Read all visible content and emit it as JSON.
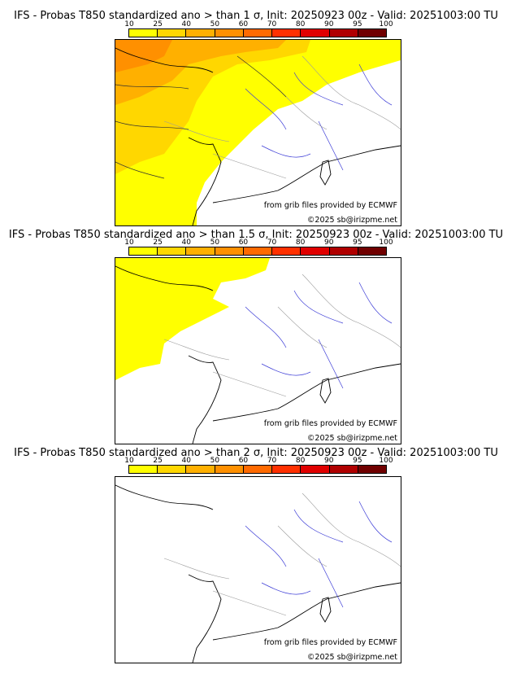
{
  "colorbar": {
    "ticks": [
      "10",
      "25",
      "40",
      "50",
      "60",
      "70",
      "80",
      "90",
      "95",
      "100"
    ],
    "colors": [
      "#ffff00",
      "#ffd700",
      "#ffb000",
      "#ff9000",
      "#ff6a00",
      "#ff3000",
      "#e00000",
      "#b00000",
      "#700000"
    ]
  },
  "panels": [
    {
      "title": "IFS - Probas T850  standardized ano > than 1 σ, Init: 20250923 00z - Valid: 20251003:00 TU",
      "credit_source": "from grib files provided by ECMWF",
      "credit_copyright": "©2025 sb@irizpme.net"
    },
    {
      "title": "IFS - Probas T850  standardized ano > than 1.5 σ, Init: 20250923 00z - Valid: 20251003:00 TU",
      "credit_source": "from grib files provided by ECMWF",
      "credit_copyright": "©2025 sb@irizpme.net"
    },
    {
      "title": "IFS - Probas T850  standardized ano > than 2 σ, Init: 20250923 00z - Valid: 20251003:00 TU",
      "credit_source": "from grib files provided by ECMWF",
      "credit_copyright": "©2025 sb@irizpme.net"
    }
  ]
}
